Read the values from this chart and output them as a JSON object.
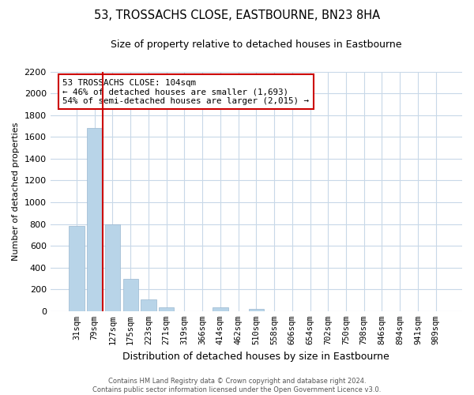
{
  "title": "53, TROSSACHS CLOSE, EASTBOURNE, BN23 8HA",
  "subtitle": "Size of property relative to detached houses in Eastbourne",
  "xlabel": "Distribution of detached houses by size in Eastbourne",
  "ylabel": "Number of detached properties",
  "categories": [
    "31sqm",
    "79sqm",
    "127sqm",
    "175sqm",
    "223sqm",
    "271sqm",
    "319sqm",
    "366sqm",
    "414sqm",
    "462sqm",
    "510sqm",
    "558sqm",
    "606sqm",
    "654sqm",
    "702sqm",
    "750sqm",
    "798sqm",
    "846sqm",
    "894sqm",
    "941sqm",
    "989sqm"
  ],
  "values": [
    780,
    1680,
    795,
    295,
    110,
    35,
    0,
    0,
    35,
    0,
    20,
    0,
    0,
    0,
    0,
    0,
    0,
    0,
    0,
    0,
    0
  ],
  "bar_color": "#b8d4e8",
  "bar_edge_color": "#9ab8d0",
  "grid_color": "#c8d8e8",
  "vline_color": "#cc0000",
  "vline_x": 1.43,
  "annotation_line1": "53 TROSSACHS CLOSE: 104sqm",
  "annotation_line2": "← 46% of detached houses are smaller (1,693)",
  "annotation_line3": "54% of semi-detached houses are larger (2,015) →",
  "ylim": [
    0,
    2200
  ],
  "yticks": [
    0,
    200,
    400,
    600,
    800,
    1000,
    1200,
    1400,
    1600,
    1800,
    2000,
    2200
  ],
  "footer_line1": "Contains HM Land Registry data © Crown copyright and database right 2024.",
  "footer_line2": "Contains public sector information licensed under the Open Government Licence v3.0.",
  "bg_color": "#ffffff",
  "plot_bg_color": "#ffffff"
}
